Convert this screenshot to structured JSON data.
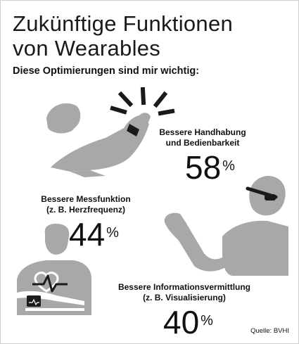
{
  "header": {
    "title_line1": "Zukünftige Funktionen",
    "title_line2": "von Wearables",
    "subtitle": "Diese Optimierungen sind mir wichtig:"
  },
  "source": "Quelle: BVHI",
  "colors": {
    "figure_gray": "#a8a8a8",
    "dark": "#1a1a1a",
    "background": "#ffffff"
  },
  "chart_data": {
    "type": "bar",
    "title": "Zukünftige Funktionen von Wearables",
    "subtitle": "Diese Optimierungen sind mir wichtig:",
    "unit": "%",
    "items": [
      {
        "label_line1": "Bessere Handhabung",
        "label_line2": "und Bedienbarkeit",
        "value": 58,
        "icon": "hand-with-smartwatch-icon"
      },
      {
        "label_line1": "Bessere Messfunktion",
        "label_line2": "(z. B. Herzfrequenz)",
        "value": 44,
        "icon": "person-with-heartbeat-icon"
      },
      {
        "label_line1": "Bessere Informationsvermittlung",
        "label_line2": "(z. B. Visualisierung)",
        "value": 40,
        "icon": "person-with-smartglasses-icon"
      }
    ]
  }
}
